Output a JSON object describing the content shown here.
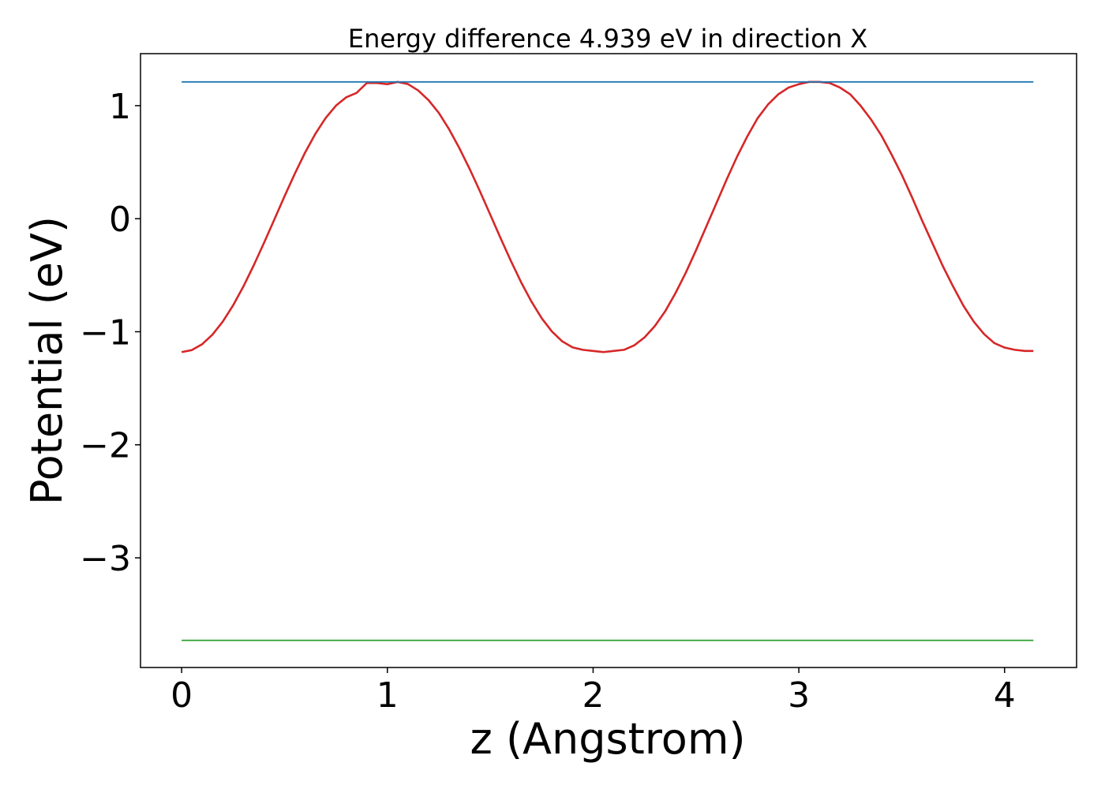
{
  "chart_data": {
    "type": "line",
    "title": "Energy difference 4.939 eV in direction X",
    "xlabel": "z (Angstrom)",
    "ylabel": "Potential (eV)",
    "xlim": [
      -0.2,
      4.35
    ],
    "ylim": [
      -3.97,
      1.46
    ],
    "grid": false,
    "xticks": [
      {
        "value": 0,
        "label": "0"
      },
      {
        "value": 1,
        "label": "1"
      },
      {
        "value": 2,
        "label": "2"
      },
      {
        "value": 3,
        "label": "3"
      },
      {
        "value": 4,
        "label": "4"
      }
    ],
    "yticks": [
      {
        "value": 1,
        "label": "1"
      },
      {
        "value": 0,
        "label": "0"
      },
      {
        "value": -1,
        "label": "−1"
      },
      {
        "value": -2,
        "label": "−2"
      },
      {
        "value": -3,
        "label": "−3"
      }
    ],
    "series": [
      {
        "color": "#d62728",
        "x": [
          0.0,
          0.05,
          0.1,
          0.15,
          0.2,
          0.25,
          0.3,
          0.35,
          0.4,
          0.45,
          0.5,
          0.55,
          0.6,
          0.65,
          0.7,
          0.75,
          0.8,
          0.85,
          0.9,
          0.95,
          1.0,
          1.05,
          1.1,
          1.15,
          1.2,
          1.25,
          1.3,
          1.35,
          1.4,
          1.45,
          1.5,
          1.55,
          1.6,
          1.65,
          1.7,
          1.75,
          1.8,
          1.85,
          1.9,
          1.95,
          2.0,
          2.05,
          2.1,
          2.15,
          2.2,
          2.25,
          2.3,
          2.35,
          2.4,
          2.45,
          2.5,
          2.55,
          2.6,
          2.65,
          2.7,
          2.75,
          2.8,
          2.85,
          2.9,
          2.95,
          3.0,
          3.05,
          3.1,
          3.15,
          3.2,
          3.25,
          3.3,
          3.35,
          3.4,
          3.45,
          3.5,
          3.55,
          3.6,
          3.65,
          3.7,
          3.75,
          3.8,
          3.85,
          3.9,
          3.95,
          4.0,
          4.05,
          4.1,
          4.14
        ],
        "y": [
          -1.18,
          -1.162,
          -1.11,
          -1.025,
          -0.91,
          -0.767,
          -0.6,
          -0.414,
          -0.215,
          -0.009,
          0.198,
          0.398,
          0.585,
          0.751,
          0.891,
          1.0,
          1.074,
          1.112,
          1.2,
          1.2,
          1.19,
          1.21,
          1.191,
          1.134,
          1.049,
          0.936,
          0.791,
          0.624,
          0.44,
          0.242,
          0.036,
          -0.171,
          -0.372,
          -0.562,
          -0.732,
          -0.88,
          -0.998,
          -1.085,
          -1.138,
          -1.16,
          -1.17,
          -1.18,
          -1.17,
          -1.16,
          -1.12,
          -1.05,
          -0.95,
          -0.82,
          -0.66,
          -0.48,
          -0.28,
          -0.07,
          0.14,
          0.35,
          0.55,
          0.73,
          0.89,
          1.01,
          1.1,
          1.16,
          1.19,
          1.21,
          1.21,
          1.2,
          1.16,
          1.1,
          1.0,
          0.88,
          0.74,
          0.57,
          0.39,
          0.19,
          -0.02,
          -0.22,
          -0.42,
          -0.6,
          -0.77,
          -0.91,
          -1.02,
          -1.1,
          -1.14,
          -1.16,
          -1.17,
          -1.17
        ]
      },
      {
        "color": "#1f77b4",
        "x": [
          0.0,
          4.14
        ],
        "y": [
          1.21,
          1.21
        ]
      },
      {
        "color": "#2ca02c",
        "x": [
          0.0,
          4.14
        ],
        "y": [
          -3.73,
          -3.73
        ]
      }
    ]
  }
}
